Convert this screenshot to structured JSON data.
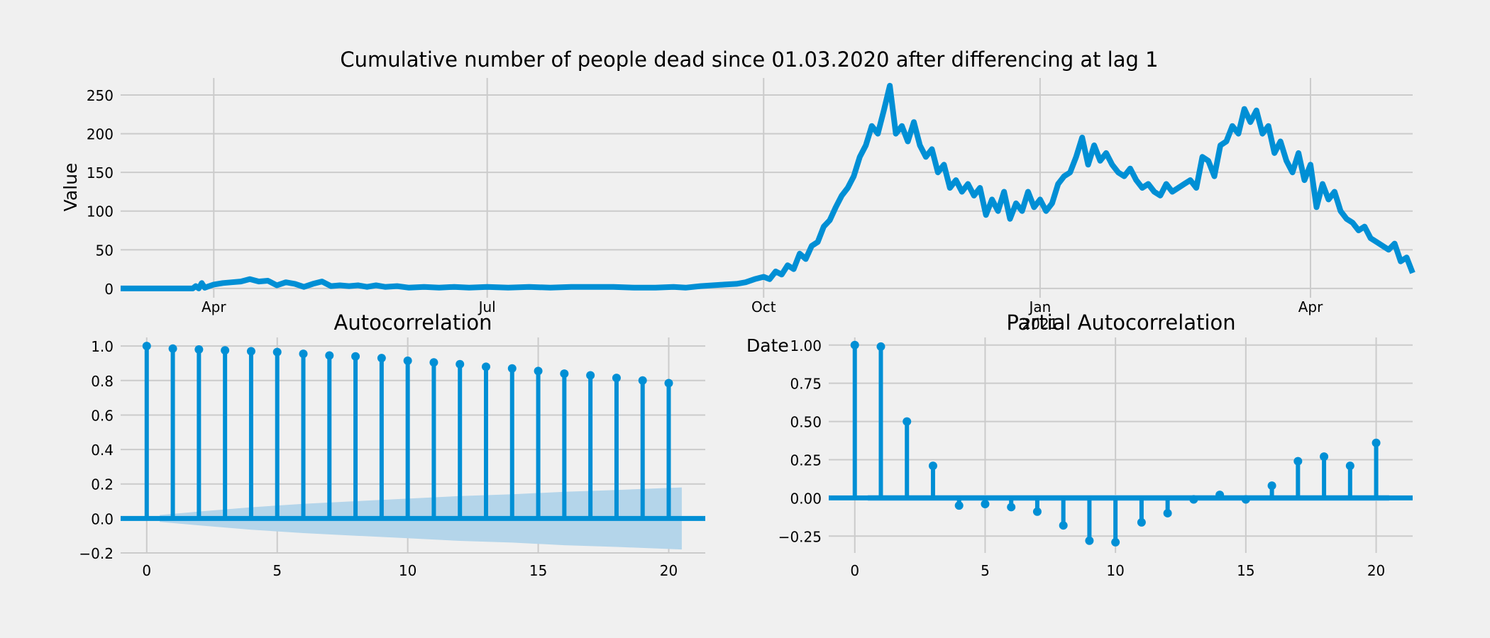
{
  "figure": {
    "background": "#f0f0f0",
    "line_color": "#008fd5",
    "grid_color": "#cbcbcb"
  },
  "chart_data": [
    {
      "type": "line",
      "title": "Cumulative number of people dead since 01.03.2020 after differencing at lag 1",
      "xlabel": "Date",
      "ylabel": "Value",
      "x_range": [
        "2020-03-01",
        "2021-05-05"
      ],
      "ylim": [
        -12,
        272
      ],
      "yticks": [
        0,
        50,
        100,
        150,
        200,
        250
      ],
      "xticks": [
        {
          "date": "2020-04-01",
          "label": "Apr"
        },
        {
          "date": "2020-07-01",
          "label": "Jul"
        },
        {
          "date": "2020-10-01",
          "label": "Oct"
        },
        {
          "date": "2021-01-01",
          "label": "Jan\n2021"
        },
        {
          "date": "2021-04-01",
          "label": "Apr"
        }
      ],
      "grid": true,
      "series": [
        {
          "points": [
            [
              "2020-03-01",
              0
            ],
            [
              "2020-03-25",
              0
            ],
            [
              "2020-03-26",
              3
            ],
            [
              "2020-03-27",
              0
            ],
            [
              "2020-03-28",
              7
            ],
            [
              "2020-03-29",
              1
            ],
            [
              "2020-04-01",
              5
            ],
            [
              "2020-04-04",
              7
            ],
            [
              "2020-04-07",
              8
            ],
            [
              "2020-04-10",
              9
            ],
            [
              "2020-04-13",
              12
            ],
            [
              "2020-04-16",
              9
            ],
            [
              "2020-04-19",
              10
            ],
            [
              "2020-04-22",
              4
            ],
            [
              "2020-04-25",
              8
            ],
            [
              "2020-04-28",
              6
            ],
            [
              "2020-05-01",
              2
            ],
            [
              "2020-05-04",
              6
            ],
            [
              "2020-05-07",
              9
            ],
            [
              "2020-05-10",
              3
            ],
            [
              "2020-05-13",
              4
            ],
            [
              "2020-05-16",
              3
            ],
            [
              "2020-05-19",
              4
            ],
            [
              "2020-05-22",
              2
            ],
            [
              "2020-05-25",
              4
            ],
            [
              "2020-05-28",
              2
            ],
            [
              "2020-06-01",
              3
            ],
            [
              "2020-06-05",
              1
            ],
            [
              "2020-06-10",
              2
            ],
            [
              "2020-06-15",
              1
            ],
            [
              "2020-06-20",
              2
            ],
            [
              "2020-06-25",
              1
            ],
            [
              "2020-07-01",
              2
            ],
            [
              "2020-07-08",
              1
            ],
            [
              "2020-07-15",
              2
            ],
            [
              "2020-07-22",
              1
            ],
            [
              "2020-07-29",
              2
            ],
            [
              "2020-08-05",
              2
            ],
            [
              "2020-08-12",
              2
            ],
            [
              "2020-08-19",
              1
            ],
            [
              "2020-08-26",
              1
            ],
            [
              "2020-09-01",
              2
            ],
            [
              "2020-09-05",
              1
            ],
            [
              "2020-09-10",
              3
            ],
            [
              "2020-09-14",
              4
            ],
            [
              "2020-09-18",
              5
            ],
            [
              "2020-09-22",
              6
            ],
            [
              "2020-09-25",
              8
            ],
            [
              "2020-09-28",
              12
            ],
            [
              "2020-10-01",
              15
            ],
            [
              "2020-10-03",
              12
            ],
            [
              "2020-10-05",
              22
            ],
            [
              "2020-10-07",
              18
            ],
            [
              "2020-10-09",
              30
            ],
            [
              "2020-10-11",
              25
            ],
            [
              "2020-10-13",
              45
            ],
            [
              "2020-10-15",
              38
            ],
            [
              "2020-10-17",
              55
            ],
            [
              "2020-10-19",
              60
            ],
            [
              "2020-10-21",
              80
            ],
            [
              "2020-10-23",
              88
            ],
            [
              "2020-10-25",
              105
            ],
            [
              "2020-10-27",
              120
            ],
            [
              "2020-10-29",
              130
            ],
            [
              "2020-10-31",
              145
            ],
            [
              "2020-11-02",
              170
            ],
            [
              "2020-11-04",
              185
            ],
            [
              "2020-11-06",
              210
            ],
            [
              "2020-11-08",
              200
            ],
            [
              "2020-11-10",
              230
            ],
            [
              "2020-11-12",
              262
            ],
            [
              "2020-11-14",
              200
            ],
            [
              "2020-11-16",
              210
            ],
            [
              "2020-11-18",
              190
            ],
            [
              "2020-11-20",
              215
            ],
            [
              "2020-11-22",
              185
            ],
            [
              "2020-11-24",
              170
            ],
            [
              "2020-11-26",
              180
            ],
            [
              "2020-11-28",
              150
            ],
            [
              "2020-11-30",
              160
            ],
            [
              "2020-12-02",
              130
            ],
            [
              "2020-12-04",
              140
            ],
            [
              "2020-12-06",
              125
            ],
            [
              "2020-12-08",
              135
            ],
            [
              "2020-12-10",
              120
            ],
            [
              "2020-12-12",
              130
            ],
            [
              "2020-12-14",
              95
            ],
            [
              "2020-12-16",
              115
            ],
            [
              "2020-12-18",
              100
            ],
            [
              "2020-12-20",
              125
            ],
            [
              "2020-12-22",
              90
            ],
            [
              "2020-12-24",
              110
            ],
            [
              "2020-12-26",
              100
            ],
            [
              "2020-12-28",
              125
            ],
            [
              "2020-12-30",
              105
            ],
            [
              "2021-01-01",
              115
            ],
            [
              "2021-01-03",
              100
            ],
            [
              "2021-01-05",
              110
            ],
            [
              "2021-01-07",
              135
            ],
            [
              "2021-01-09",
              145
            ],
            [
              "2021-01-11",
              150
            ],
            [
              "2021-01-13",
              170
            ],
            [
              "2021-01-15",
              195
            ],
            [
              "2021-01-17",
              160
            ],
            [
              "2021-01-19",
              185
            ],
            [
              "2021-01-21",
              165
            ],
            [
              "2021-01-23",
              175
            ],
            [
              "2021-01-25",
              160
            ],
            [
              "2021-01-27",
              150
            ],
            [
              "2021-01-29",
              145
            ],
            [
              "2021-01-31",
              155
            ],
            [
              "2021-02-02",
              140
            ],
            [
              "2021-02-04",
              130
            ],
            [
              "2021-02-06",
              135
            ],
            [
              "2021-02-08",
              125
            ],
            [
              "2021-02-10",
              120
            ],
            [
              "2021-02-12",
              135
            ],
            [
              "2021-02-14",
              125
            ],
            [
              "2021-02-16",
              130
            ],
            [
              "2021-02-18",
              135
            ],
            [
              "2021-02-20",
              140
            ],
            [
              "2021-02-22",
              130
            ],
            [
              "2021-02-24",
              170
            ],
            [
              "2021-02-26",
              165
            ],
            [
              "2021-02-28",
              145
            ],
            [
              "2021-03-02",
              185
            ],
            [
              "2021-03-04",
              190
            ],
            [
              "2021-03-06",
              210
            ],
            [
              "2021-03-08",
              200
            ],
            [
              "2021-03-10",
              232
            ],
            [
              "2021-03-12",
              215
            ],
            [
              "2021-03-14",
              230
            ],
            [
              "2021-03-16",
              200
            ],
            [
              "2021-03-18",
              210
            ],
            [
              "2021-03-20",
              175
            ],
            [
              "2021-03-22",
              190
            ],
            [
              "2021-03-24",
              165
            ],
            [
              "2021-03-26",
              150
            ],
            [
              "2021-03-28",
              175
            ],
            [
              "2021-03-30",
              140
            ],
            [
              "2021-04-01",
              160
            ],
            [
              "2021-04-03",
              105
            ],
            [
              "2021-04-05",
              135
            ],
            [
              "2021-04-07",
              115
            ],
            [
              "2021-04-09",
              125
            ],
            [
              "2021-04-11",
              100
            ],
            [
              "2021-04-13",
              90
            ],
            [
              "2021-04-15",
              85
            ],
            [
              "2021-04-17",
              75
            ],
            [
              "2021-04-19",
              80
            ],
            [
              "2021-04-21",
              65
            ],
            [
              "2021-04-23",
              60
            ],
            [
              "2021-04-25",
              55
            ],
            [
              "2021-04-27",
              50
            ],
            [
              "2021-04-29",
              58
            ],
            [
              "2021-05-01",
              35
            ],
            [
              "2021-05-03",
              40
            ],
            [
              "2021-05-05",
              20
            ]
          ]
        }
      ]
    },
    {
      "type": "stem",
      "title": "Autocorrelation",
      "xlim": [
        -1,
        21.4
      ],
      "ylim": [
        -0.2,
        1.05
      ],
      "xticks": [
        0,
        5,
        10,
        15,
        20
      ],
      "yticks": [
        {
          "value": -0.2,
          "label": "−0.2"
        },
        {
          "value": 0.0,
          "label": "0.0"
        },
        {
          "value": 0.2,
          "label": "0.2"
        },
        {
          "value": 0.4,
          "label": "0.4"
        },
        {
          "value": 0.6,
          "label": "0.6"
        },
        {
          "value": 0.8,
          "label": "0.8"
        },
        {
          "value": 1.0,
          "label": "1.0"
        }
      ],
      "grid": true,
      "lags": [
        0,
        1,
        2,
        3,
        4,
        5,
        6,
        7,
        8,
        9,
        10,
        11,
        12,
        13,
        14,
        15,
        16,
        17,
        18,
        19,
        20
      ],
      "values": [
        1.0,
        0.985,
        0.98,
        0.975,
        0.97,
        0.965,
        0.955,
        0.945,
        0.94,
        0.93,
        0.915,
        0.905,
        0.895,
        0.88,
        0.87,
        0.855,
        0.84,
        0.83,
        0.815,
        0.8,
        0.785
      ],
      "confidence_band": {
        "lags": [
          0.5,
          2,
          4,
          6,
          8,
          10,
          12,
          14,
          16,
          18,
          20.5
        ],
        "half_width": [
          0.02,
          0.04,
          0.065,
          0.085,
          0.1,
          0.115,
          0.13,
          0.14,
          0.155,
          0.165,
          0.18
        ]
      }
    },
    {
      "type": "stem",
      "title": "Partial Autocorrelation",
      "xlim": [
        -1,
        21.4
      ],
      "ylim": [
        -0.36,
        1.05
      ],
      "xticks": [
        0,
        5,
        10,
        15,
        20
      ],
      "yticks": [
        {
          "value": -0.25,
          "label": "−0.25"
        },
        {
          "value": 0.0,
          "label": "0.00"
        },
        {
          "value": 0.25,
          "label": "0.25"
        },
        {
          "value": 0.5,
          "label": "0.50"
        },
        {
          "value": 0.75,
          "label": "0.75"
        },
        {
          "value": 1.0,
          "label": "1.00"
        }
      ],
      "grid": true,
      "lags": [
        0,
        1,
        2,
        3,
        4,
        5,
        6,
        7,
        8,
        9,
        10,
        11,
        12,
        13,
        14,
        15,
        16,
        17,
        18,
        19,
        20
      ],
      "values": [
        1.0,
        0.99,
        0.5,
        0.21,
        -0.05,
        -0.04,
        -0.06,
        -0.09,
        -0.18,
        -0.28,
        -0.29,
        -0.16,
        -0.1,
        -0.01,
        0.02,
        -0.01,
        0.08,
        0.24,
        0.27,
        0.21,
        0.36
      ],
      "confidence_band": {
        "lags": [
          0.5,
          20.5
        ],
        "half_width": [
          0.02,
          0.02
        ]
      }
    }
  ]
}
